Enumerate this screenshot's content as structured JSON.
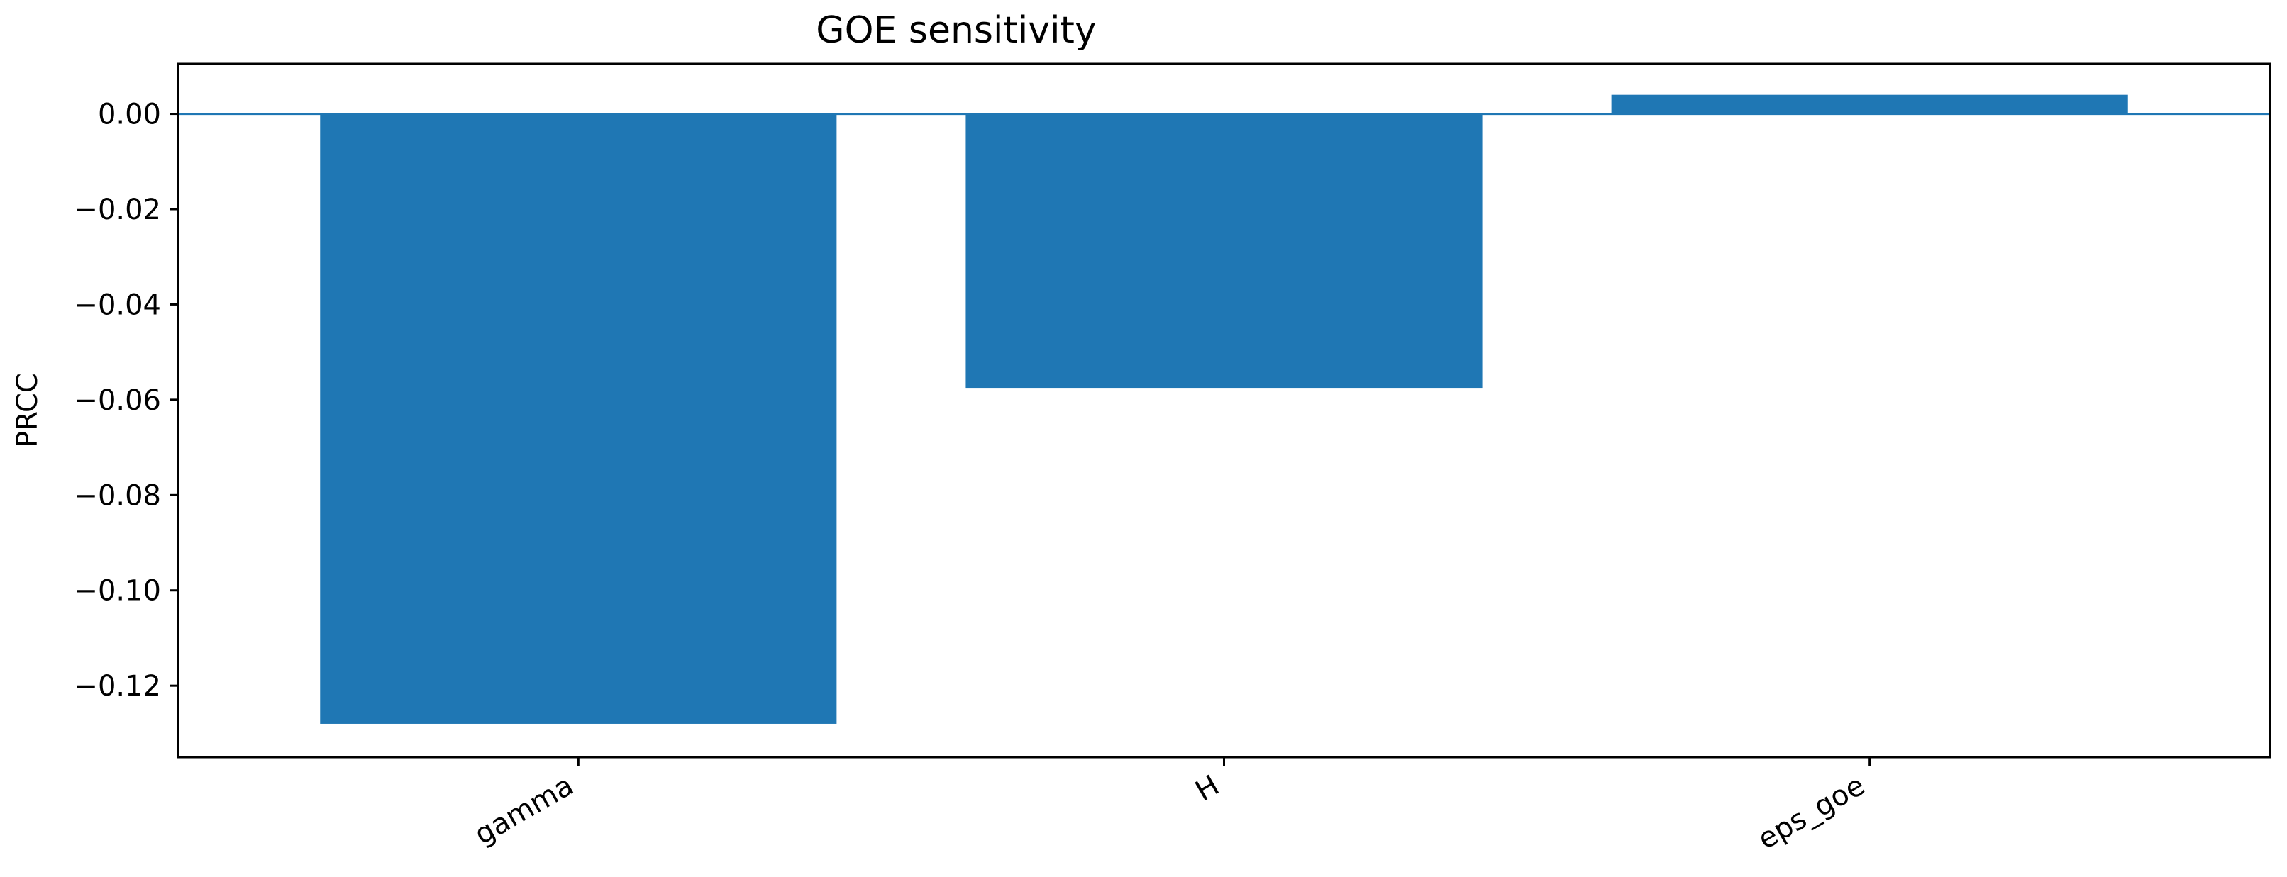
{
  "chart_data": {
    "type": "bar",
    "title": "GOE sensitivity",
    "xlabel": "",
    "ylabel": "PRCC",
    "categories": [
      "gamma",
      "H",
      "eps_goe"
    ],
    "values": [
      -0.128,
      -0.0575,
      0.004
    ],
    "ylim": [
      -0.135,
      0.0105
    ],
    "yticks": [
      0.0,
      -0.02,
      -0.04,
      -0.06,
      -0.08,
      -0.1,
      -0.12
    ],
    "ytick_labels": [
      "0.00",
      "−0.02",
      "−0.04",
      "−0.06",
      "−0.08",
      "−0.10",
      "−0.12"
    ],
    "grid": false,
    "legend": "none",
    "bar_color": "#1f77b4",
    "zero_line_color": "#1f77b4",
    "xtick_rotation_deg": 30
  }
}
